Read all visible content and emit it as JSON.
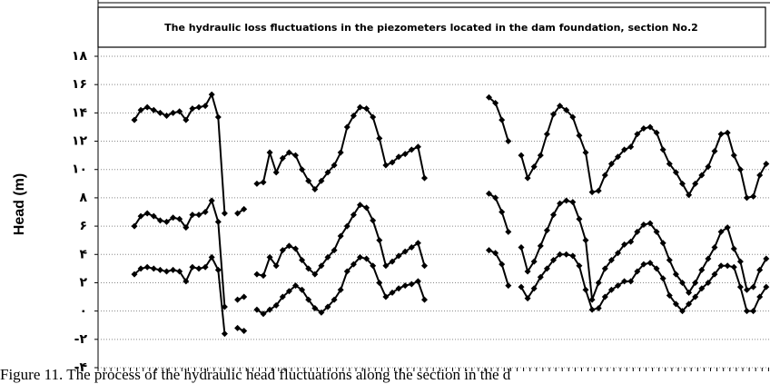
{
  "chart_data": {
    "type": "line",
    "title": "The hydraulic loss fluctuations in the piezometers located in the dam foundation, section No.2",
    "ylabel": "Head (m)",
    "caption": "Figure 11. The process of the hydraulic head fluctuations along the section in the d",
    "ylim": [
      -4,
      18
    ],
    "yticks": [
      {
        "value": -4,
        "label": "-۴"
      },
      {
        "value": -2,
        "label": "-۲"
      },
      {
        "value": 0,
        "label": "۰"
      },
      {
        "value": 2,
        "label": "۲"
      },
      {
        "value": 4,
        "label": "۴"
      },
      {
        "value": 6,
        "label": "۶"
      },
      {
        "value": 8,
        "label": "۸"
      },
      {
        "value": 10,
        "label": "۱۰"
      },
      {
        "value": 12,
        "label": "۱۲"
      },
      {
        "value": 14,
        "label": "۱۴"
      },
      {
        "value": 16,
        "label": "۱۶"
      },
      {
        "value": 18,
        "label": "۱۸"
      }
    ],
    "grid": true,
    "series": [
      {
        "color": "#000000",
        "values": [
          13.5,
          14.2,
          14.4,
          14.2,
          14.0,
          13.8,
          14.0,
          14.1,
          13.5,
          14.3,
          14.4,
          14.5,
          15.3,
          13.7,
          6.9,
          null,
          6.9,
          7.2,
          null,
          9.0,
          9.1,
          11.2,
          9.8,
          10.8,
          11.2,
          11.0,
          10.0,
          9.2,
          8.6,
          9.2,
          9.8,
          10.3,
          11.2,
          13.0,
          13.8,
          14.4,
          14.3,
          13.7,
          12.2,
          10.3,
          10.5,
          10.9,
          11.1,
          11.4,
          11.6,
          9.4,
          null,
          null,
          null,
          null,
          null,
          null,
          null,
          null,
          null,
          15.1,
          14.7,
          13.5,
          12.0,
          null,
          11.0,
          9.4,
          10.2,
          11.0,
          12.5,
          13.9,
          14.5,
          14.2,
          13.7,
          12.4,
          11.2,
          8.4,
          8.5,
          9.6,
          10.4,
          10.9,
          11.4,
          11.6,
          12.5,
          12.9,
          13.0,
          12.6,
          11.4,
          10.4,
          9.8,
          9.0,
          8.2,
          9.0,
          9.6,
          10.2,
          11.3,
          12.5,
          12.6,
          11.0,
          10.0,
          8.0,
          8.1,
          9.6,
          10.4
        ]
      },
      {
        "color": "#000000",
        "values": [
          6.0,
          6.7,
          6.9,
          6.7,
          6.4,
          6.3,
          6.6,
          6.5,
          5.9,
          6.8,
          6.8,
          7.0,
          7.8,
          6.3,
          0.3,
          null,
          0.8,
          1.0,
          null,
          2.6,
          2.5,
          3.8,
          3.2,
          4.3,
          4.6,
          4.4,
          3.6,
          3.0,
          2.6,
          3.2,
          3.8,
          4.3,
          5.3,
          6.0,
          6.8,
          7.5,
          7.3,
          6.4,
          5.0,
          3.2,
          3.5,
          3.9,
          4.2,
          4.5,
          4.8,
          3.2,
          null,
          null,
          null,
          null,
          null,
          null,
          null,
          null,
          null,
          8.3,
          8.0,
          7.0,
          5.6,
          null,
          4.5,
          2.8,
          3.5,
          4.6,
          5.7,
          6.8,
          7.6,
          7.8,
          7.7,
          6.5,
          5.0,
          0.8,
          2.0,
          3.0,
          3.6,
          4.1,
          4.7,
          4.9,
          5.6,
          6.1,
          6.2,
          5.6,
          4.8,
          3.6,
          2.6,
          2.0,
          1.3,
          2.0,
          2.9,
          3.7,
          4.5,
          5.6,
          5.9,
          4.4,
          3.5,
          1.5,
          1.7,
          2.9,
          3.7
        ]
      },
      {
        "color": "#000000",
        "values": [
          2.6,
          3.0,
          3.1,
          3.0,
          2.9,
          2.8,
          2.9,
          2.8,
          2.1,
          3.1,
          3.0,
          3.1,
          3.8,
          2.9,
          -1.6,
          null,
          -1.2,
          -1.4,
          null,
          0.1,
          -0.2,
          0.1,
          0.4,
          1.0,
          1.4,
          1.8,
          1.5,
          0.8,
          0.2,
          -0.1,
          0.3,
          0.8,
          1.5,
          2.8,
          3.3,
          3.8,
          3.7,
          3.2,
          2.0,
          1.0,
          1.3,
          1.6,
          1.8,
          1.9,
          2.1,
          0.8,
          null,
          null,
          null,
          null,
          null,
          null,
          null,
          null,
          null,
          4.3,
          4.1,
          3.3,
          1.8,
          null,
          1.7,
          0.9,
          1.6,
          2.4,
          3.0,
          3.6,
          4.0,
          4.0,
          3.9,
          3.2,
          1.5,
          0.1,
          0.2,
          1.0,
          1.5,
          1.8,
          2.1,
          2.1,
          2.8,
          3.3,
          3.4,
          3.0,
          2.3,
          1.1,
          0.5,
          0.0,
          0.5,
          1.0,
          1.6,
          2.0,
          2.6,
          3.2,
          3.2,
          3.1,
          1.7,
          0.0,
          0.0,
          1.0,
          1.7
        ]
      }
    ]
  }
}
